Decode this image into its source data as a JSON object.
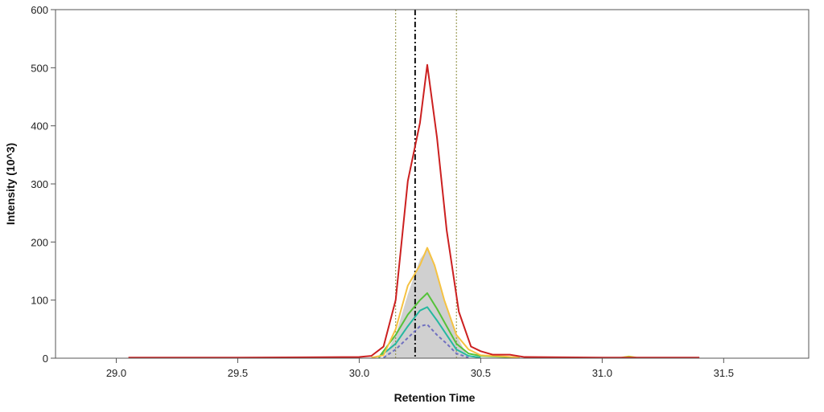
{
  "chart_data": {
    "type": "line",
    "xlabel": "Retention Time",
    "ylabel": "Intensity (10^3)",
    "xlim": [
      28.75,
      31.85
    ],
    "ylim": [
      0,
      600
    ],
    "x_ticks": [
      29.0,
      29.5,
      30.0,
      30.5,
      31.0,
      31.5
    ],
    "x_tick_labels": [
      "29.0",
      "29.5",
      "30.0",
      "30.5",
      "31.0",
      "31.5"
    ],
    "y_ticks": [
      0,
      100,
      200,
      300,
      400,
      500,
      600
    ],
    "y_tick_labels": [
      "0",
      "100",
      "200",
      "300",
      "400",
      "500",
      "600"
    ],
    "grid": false,
    "legend": "none",
    "vertical_markers": [
      {
        "x": 30.15,
        "style": "dotted",
        "color": "#8a8a3a"
      },
      {
        "x": 30.23,
        "style": "dash-dot",
        "color": "#111111"
      },
      {
        "x": 30.4,
        "style": "dotted",
        "color": "#8a8a3a"
      }
    ],
    "shaded_area": {
      "color": "#c8c8c8",
      "x": [
        30.1,
        30.15,
        30.2,
        30.25,
        30.28,
        30.31,
        30.35,
        30.4,
        30.45
      ],
      "values": [
        0,
        40,
        110,
        170,
        188,
        160,
        100,
        40,
        0
      ]
    },
    "series": [
      {
        "color": "#cc2020",
        "style": "solid",
        "x": [
          29.05,
          29.5,
          30.0,
          30.05,
          30.1,
          30.15,
          30.2,
          30.25,
          30.28,
          30.32,
          30.36,
          30.41,
          30.46,
          30.5,
          30.55,
          30.62,
          30.68,
          31.0,
          31.4
        ],
        "values": [
          1,
          1,
          2,
          4,
          20,
          100,
          305,
          405,
          505,
          380,
          220,
          80,
          20,
          12,
          6,
          6,
          2,
          1,
          1
        ]
      },
      {
        "color": "#f5c242",
        "style": "solid",
        "x": [
          30.05,
          30.1,
          30.15,
          30.2,
          30.25,
          30.28,
          30.31,
          30.35,
          30.4,
          30.45,
          30.5,
          30.6,
          30.66
        ],
        "values": [
          1,
          5,
          50,
          125,
          160,
          190,
          160,
          100,
          40,
          15,
          5,
          3,
          1
        ]
      },
      {
        "color": "#55c23a",
        "style": "solid",
        "x": [
          30.08,
          30.15,
          30.2,
          30.25,
          30.28,
          30.32,
          30.36,
          30.4,
          30.45,
          30.5,
          30.6,
          30.66
        ],
        "values": [
          1,
          40,
          75,
          100,
          112,
          85,
          55,
          25,
          8,
          4,
          2,
          1
        ]
      },
      {
        "color": "#26b8a0",
        "style": "solid",
        "x": [
          30.08,
          30.15,
          30.2,
          30.25,
          30.28,
          30.32,
          30.36,
          30.4,
          30.45,
          30.5
        ],
        "values": [
          1,
          25,
          55,
          82,
          88,
          65,
          40,
          15,
          4,
          1
        ]
      },
      {
        "color": "#7070c0",
        "style": "dashed",
        "x": [
          30.1,
          30.15,
          30.2,
          30.25,
          30.28,
          30.32,
          30.36,
          30.4,
          30.45
        ],
        "values": [
          1,
          15,
          35,
          55,
          58,
          40,
          25,
          8,
          1
        ]
      },
      {
        "color": "#c8c830",
        "style": "solid",
        "x": [
          31.08,
          31.11,
          31.14
        ],
        "values": [
          1,
          3,
          1
        ]
      }
    ]
  }
}
